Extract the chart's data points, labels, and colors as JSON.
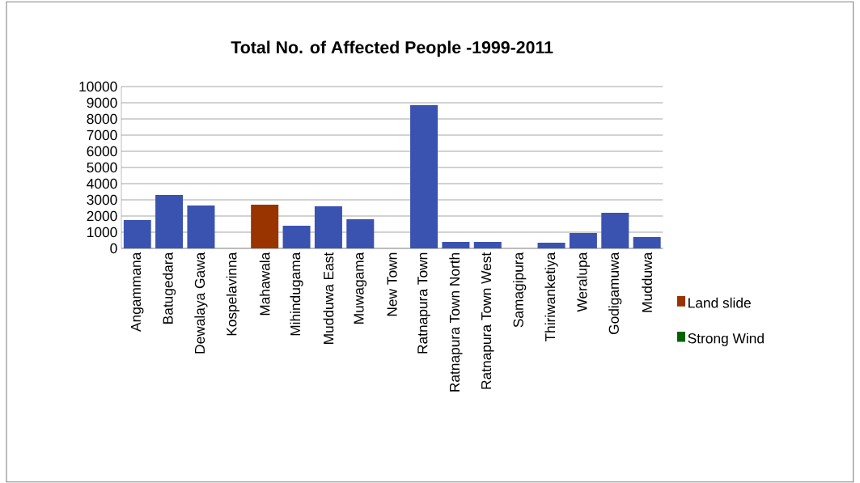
{
  "chart_data": {
    "type": "bar",
    "title": "Total No. of Affected People -1999-2011",
    "categories": [
      "Angammana",
      "Batugedara",
      "Dewalaya Gawa",
      "Kospelavinna",
      "Mahawala",
      "Mihindugama",
      "Mudduwa East",
      "Muwagama",
      "New Town",
      "Ratnapura Town",
      "Ratnapura Town North",
      "Ratnapura Town West",
      "Samagipura",
      "Thiriwanketiya",
      "Weralupa",
      "Godigamuwa",
      "Mudduwa"
    ],
    "stacked": true,
    "series": [
      {
        "color": "#3a53b0",
        "values": [
          1700,
          3250,
          2600,
          0,
          0,
          1350,
          2550,
          1750,
          0,
          8800,
          350,
          350,
          0,
          300,
          900,
          2150,
          650
        ]
      },
      {
        "name": "Land slide",
        "color": "#993300",
        "values": [
          0,
          0,
          0,
          0,
          2650,
          0,
          0,
          0,
          0,
          0,
          0,
          0,
          0,
          0,
          0,
          0,
          0
        ]
      },
      {
        "name": "Strong Wind",
        "color": "#006400",
        "values": [
          0,
          0,
          0,
          0,
          null,
          0,
          0,
          0,
          0,
          0,
          0,
          0,
          0,
          null,
          null,
          0,
          0
        ]
      }
    ],
    "ylim": [
      0,
      10000
    ],
    "yticks": [
      0,
      1000,
      2000,
      3000,
      4000,
      5000,
      6000,
      7000,
      8000,
      9000,
      10000
    ],
    "grid": "y",
    "legend": "right"
  }
}
